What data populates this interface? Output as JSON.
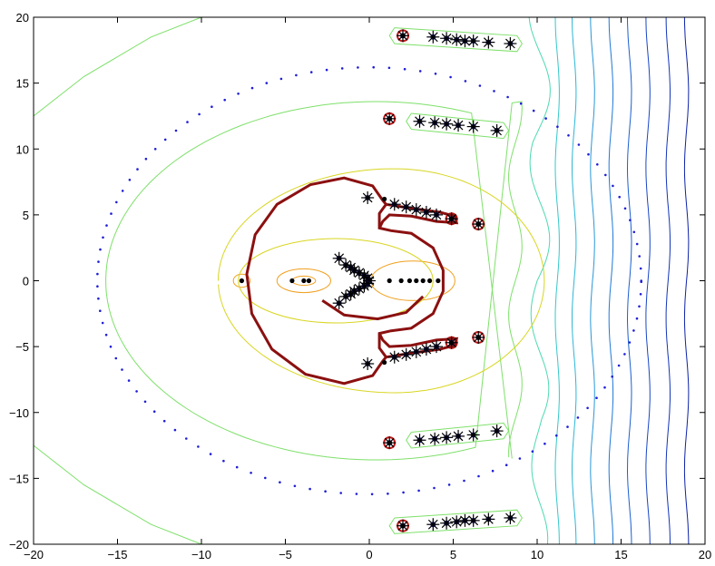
{
  "chart_data": {
    "type": "contour",
    "title": "",
    "xlabel": "",
    "ylabel": "",
    "xlim": [
      -20,
      20
    ],
    "ylim": [
      -20,
      20
    ],
    "x_ticks": [
      -20,
      -15,
      -10,
      -5,
      0,
      5,
      10,
      15,
      20
    ],
    "y_ticks": [
      -20,
      -15,
      -10,
      -5,
      0,
      5,
      10,
      15,
      20
    ],
    "x_tick_labels": [
      "−20",
      "−15",
      "−10",
      "−5",
      "0",
      "5",
      "10",
      "15",
      "20"
    ],
    "y_tick_labels": [
      "−20",
      "−15",
      "−10",
      "−5",
      "0",
      "5",
      "10",
      "15",
      "20"
    ],
    "grid": false,
    "dotted_circle": {
      "center": [
        0,
        0
      ],
      "radius": 16.2,
      "color": "#1f1fd6"
    },
    "vertical_contours_x": [
      10.0,
      11.2,
      12.2,
      13.3,
      14.4,
      15.5,
      16.6,
      17.8,
      18.9
    ],
    "vertical_contour_colors": [
      "#4cd9b0",
      "#35c7c9",
      "#2cb6d6",
      "#2897d8",
      "#2078d4",
      "#1c5fce",
      "#1846c4",
      "#1234b8",
      "#0c22a8"
    ],
    "outer_contour_color": "#7ee06a",
    "inner_contour_color": "#d8d622",
    "core_contour_color": "#f0a020",
    "boundary_curve_color": "#8b1010",
    "marker_fill_color": "#1a1a7a",
    "highlight_marker_color": "#c01818",
    "star_markers": [
      [
        2.0,
        18.6
      ],
      [
        3.8,
        18.5
      ],
      [
        4.6,
        18.4
      ],
      [
        5.2,
        18.3
      ],
      [
        5.7,
        18.2
      ],
      [
        6.2,
        18.2
      ],
      [
        7.1,
        18.1
      ],
      [
        8.4,
        18.0
      ],
      [
        2.0,
        -18.6
      ],
      [
        3.8,
        -18.5
      ],
      [
        4.6,
        -18.4
      ],
      [
        5.2,
        -18.3
      ],
      [
        5.7,
        -18.2
      ],
      [
        6.2,
        -18.2
      ],
      [
        7.1,
        -18.1
      ],
      [
        8.4,
        -18.0
      ],
      [
        1.2,
        12.3
      ],
      [
        3.0,
        12.1
      ],
      [
        3.9,
        12.0
      ],
      [
        4.6,
        11.9
      ],
      [
        5.3,
        11.8
      ],
      [
        6.2,
        11.7
      ],
      [
        7.6,
        11.4
      ],
      [
        1.2,
        -12.3
      ],
      [
        3.0,
        -12.1
      ],
      [
        3.9,
        -12.0
      ],
      [
        4.6,
        -11.9
      ],
      [
        5.3,
        -11.8
      ],
      [
        6.2,
        -11.7
      ],
      [
        7.6,
        -11.4
      ],
      [
        -0.1,
        6.3
      ],
      [
        1.5,
        5.8
      ],
      [
        2.2,
        5.6
      ],
      [
        2.8,
        5.4
      ],
      [
        3.4,
        5.2
      ],
      [
        4.0,
        5.0
      ],
      [
        4.9,
        4.7
      ],
      [
        6.5,
        4.3
      ],
      [
        -0.1,
        -6.3
      ],
      [
        1.5,
        -5.8
      ],
      [
        2.2,
        -5.6
      ],
      [
        2.8,
        -5.4
      ],
      [
        3.4,
        -5.2
      ],
      [
        4.0,
        -5.0
      ],
      [
        4.9,
        -4.7
      ],
      [
        6.5,
        -4.3
      ],
      [
        -1.8,
        1.7
      ],
      [
        -1.4,
        1.2
      ],
      [
        -1.1,
        1.0
      ],
      [
        -0.9,
        0.8
      ],
      [
        -0.6,
        0.6
      ],
      [
        -0.3,
        0.4
      ],
      [
        -0.1,
        0.2
      ],
      [
        0.0,
        0.0
      ],
      [
        -1.8,
        -1.7
      ],
      [
        -1.4,
        -1.2
      ],
      [
        -1.1,
        -1.0
      ],
      [
        -0.9,
        -0.8
      ],
      [
        -0.6,
        -0.6
      ],
      [
        -0.3,
        -0.4
      ],
      [
        -0.1,
        -0.2
      ]
    ],
    "dot_markers": [
      [
        -7.6,
        0
      ],
      [
        -4.6,
        0
      ],
      [
        -3.9,
        0
      ],
      [
        -3.6,
        0
      ],
      [
        1.2,
        0
      ],
      [
        1.9,
        0
      ],
      [
        2.4,
        0
      ],
      [
        2.8,
        0
      ],
      [
        3.2,
        0
      ],
      [
        3.6,
        0
      ],
      [
        4.1,
        0
      ],
      [
        0.9,
        6.2
      ],
      [
        0.9,
        -6.2
      ],
      [
        1.2,
        12.3
      ],
      [
        1.2,
        -12.3
      ],
      [
        2.0,
        18.6
      ],
      [
        2.0,
        -18.6
      ],
      [
        6.5,
        4.3
      ],
      [
        6.5,
        -4.3
      ],
      [
        4.9,
        4.7
      ],
      [
        4.9,
        -4.7
      ]
    ]
  }
}
